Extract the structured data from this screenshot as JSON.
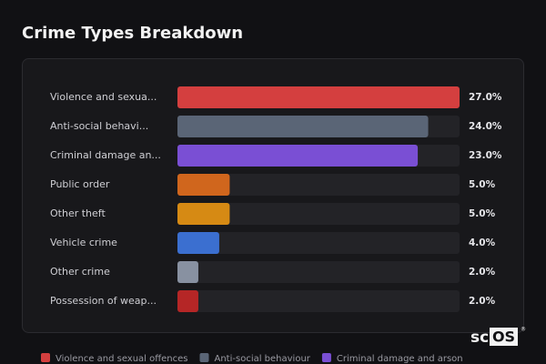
{
  "chart_data": {
    "type": "hbar",
    "title": "Crime Types Breakdown",
    "categories": [
      "Violence and sexua...",
      "Anti-social behavi...",
      "Criminal damage an...",
      "Public order",
      "Other theft",
      "Vehicle crime",
      "Other crime",
      "Possession of weap..."
    ],
    "values": [
      27,
      24,
      23,
      5,
      5,
      4,
      2,
      2
    ],
    "value_labels": [
      "27.0%",
      "24.0%",
      "23.0%",
      "5.0%",
      "5.0%",
      "4.0%",
      "2.0%",
      "2.0%"
    ],
    "colors": [
      "#d43f3f",
      "#5a6576",
      "#7a4fd4",
      "#d0661d",
      "#d68a14",
      "#3b6fd0",
      "#8891a1",
      "#b52626"
    ],
    "xlim": [
      0,
      27
    ],
    "legend": [
      {
        "name": "Violence and sexual offences",
        "color": "#d43f3f"
      },
      {
        "name": "Anti-social behaviour",
        "color": "#5a6576"
      },
      {
        "name": "Criminal damage and arson",
        "color": "#7a4fd4"
      }
    ],
    "logo": {
      "prefix": "sc",
      "boxed": "OS",
      "mark": "®"
    }
  }
}
